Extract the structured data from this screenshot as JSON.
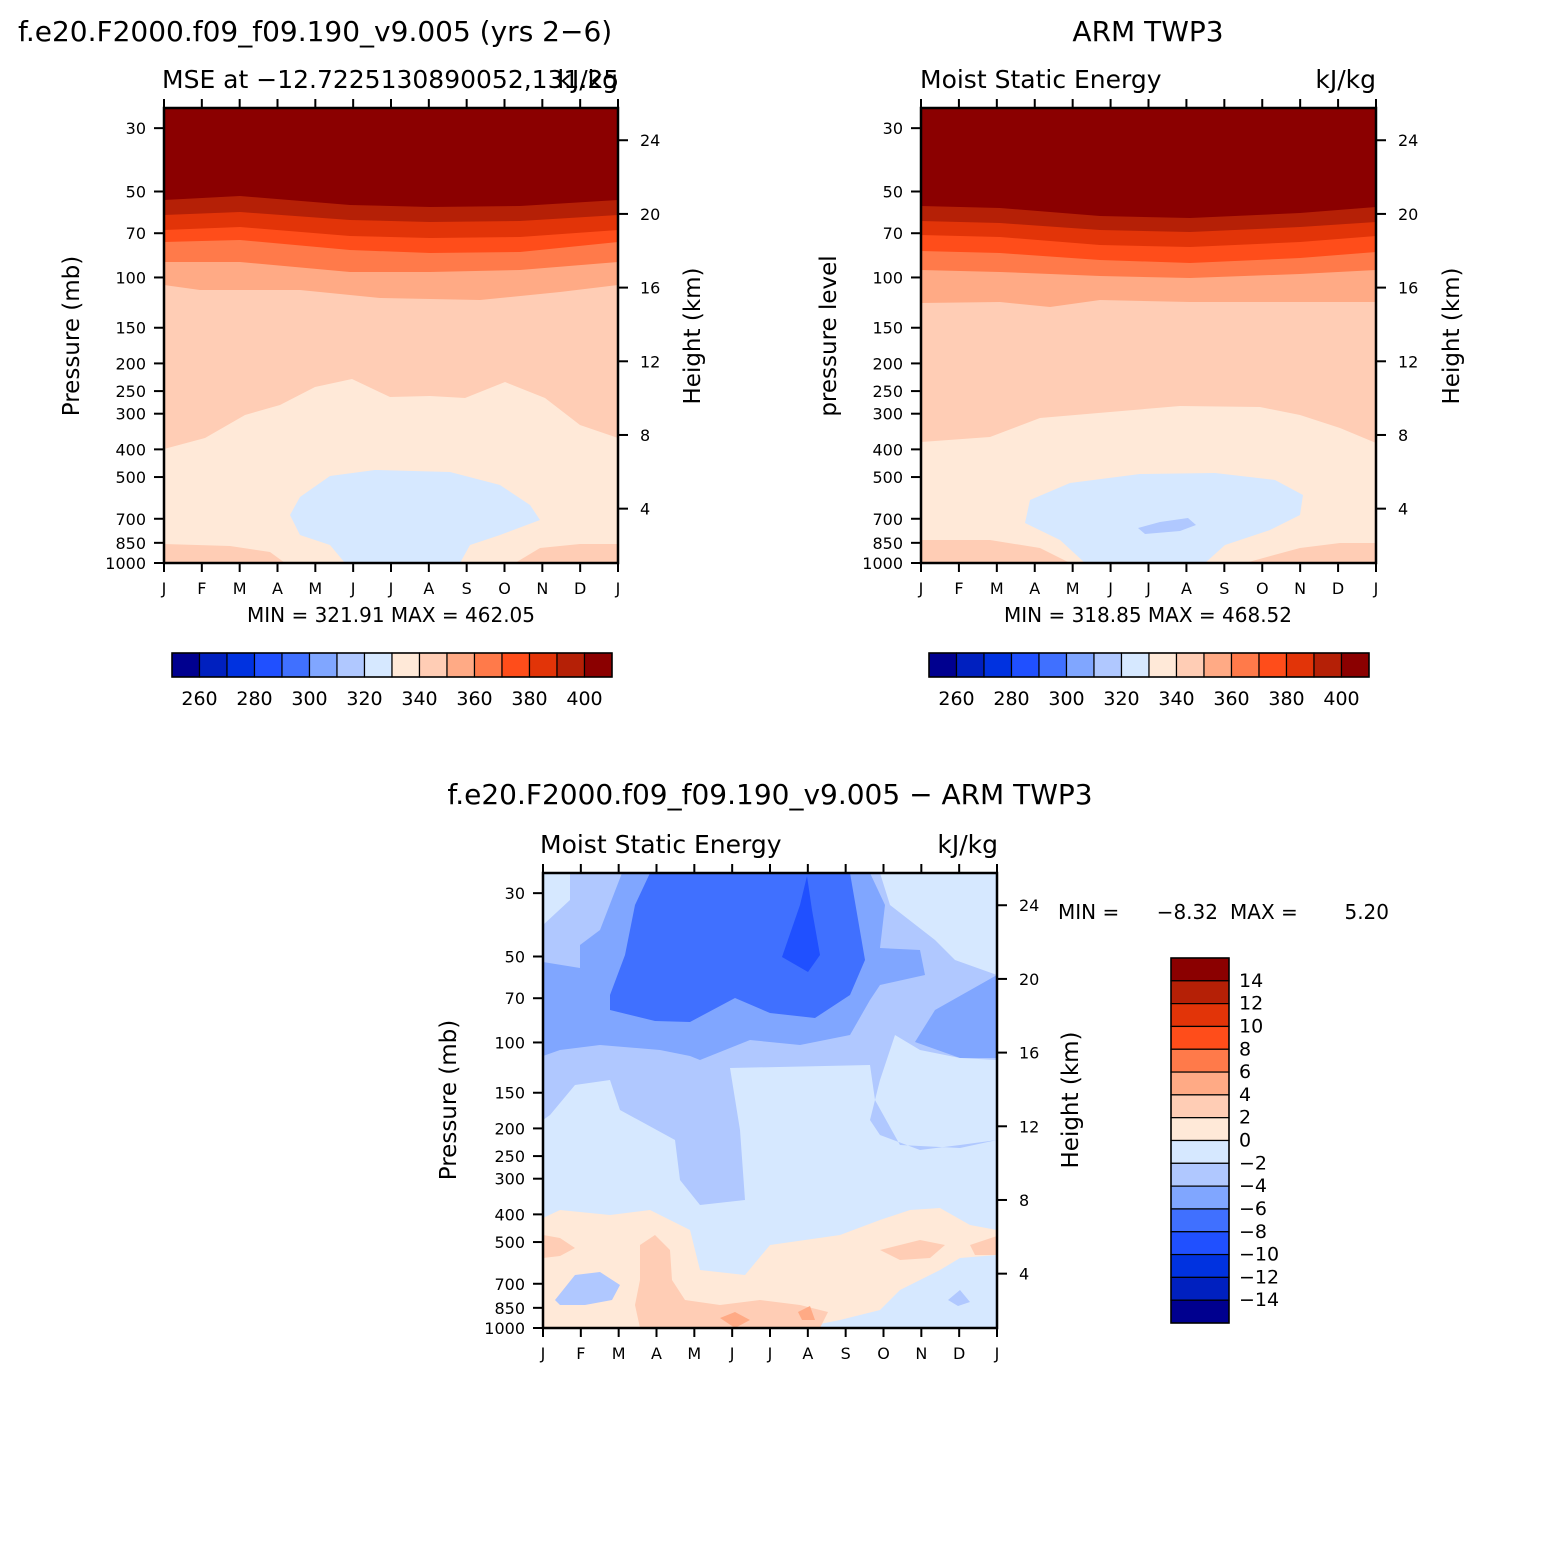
{
  "chart_data": [
    {
      "type": "contour",
      "panel": "model",
      "title": "f.e20.F2000.f09_f09.190_v9.005 (yrs 2−6)",
      "subtitle_left": "MSE at −12.7225130890052,131.25",
      "subtitle_right": "kJ/kg",
      "ylabel": "Pressure (mb)",
      "ylabel_right": "Height (km)",
      "x_labels": [
        "J",
        "F",
        "M",
        "A",
        "M",
        "J",
        "J",
        "A",
        "S",
        "O",
        "N",
        "D",
        "J"
      ],
      "pressure_ticks": [
        "30",
        "50",
        "70",
        "100",
        "150",
        "200",
        "250",
        "300",
        "400",
        "500",
        "700",
        "850",
        "1000"
      ],
      "height_ticks": [
        "24",
        "20",
        "16",
        "12",
        "8",
        "4"
      ],
      "min_max": "MIN = 321.91 MAX = 462.05",
      "min": 321.91,
      "max": 462.05,
      "colorbar": {
        "labels": [
          "260",
          "280",
          "300",
          "320",
          "340",
          "360",
          "380",
          "400"
        ],
        "levels_start": 250,
        "step": 10
      },
      "band_boundaries_mb": {
        "330": [
          380,
          360,
          300,
          260,
          235,
          225,
          255,
          255,
          250,
          232,
          255,
          310,
          380
        ],
        "320": [
          null,
          null,
          null,
          null,
          null,
          null,
          null,
          null,
          null,
          null,
          null,
          null,
          null
        ]
      }
    },
    {
      "type": "contour",
      "panel": "observed",
      "title": "ARM TWP3",
      "subtitle_left": "Moist Static Energy",
      "subtitle_right": "kJ/kg",
      "ylabel": "pressure level",
      "ylabel_right": "Height (km)",
      "x_labels": [
        "J",
        "F",
        "M",
        "A",
        "M",
        "J",
        "J",
        "A",
        "S",
        "O",
        "N",
        "D",
        "J"
      ],
      "pressure_ticks": [
        "30",
        "50",
        "70",
        "100",
        "150",
        "200",
        "250",
        "300",
        "400",
        "500",
        "700",
        "850",
        "1000"
      ],
      "height_ticks": [
        "24",
        "20",
        "16",
        "12",
        "8",
        "4"
      ],
      "min_max": "MIN = 318.85 MAX = 468.52",
      "min": 318.85,
      "max": 468.52,
      "colorbar": {
        "labels": [
          "260",
          "280",
          "300",
          "320",
          "340",
          "360",
          "380",
          "400"
        ],
        "levels_start": 250,
        "step": 10
      }
    },
    {
      "type": "contour",
      "panel": "difference",
      "title": "f.e20.F2000.f09_f09.190_v9.005 − ARM TWP3",
      "subtitle_left": "Moist Static Energy",
      "subtitle_right": "kJ/kg",
      "ylabel": "Pressure (mb)",
      "ylabel_right": "Height (km)",
      "x_labels": [
        "J",
        "F",
        "M",
        "A",
        "M",
        "J",
        "J",
        "A",
        "S",
        "O",
        "N",
        "D",
        "J"
      ],
      "pressure_ticks": [
        "30",
        "50",
        "70",
        "100",
        "150",
        "200",
        "250",
        "300",
        "400",
        "500",
        "700",
        "850",
        "1000"
      ],
      "height_ticks": [
        "24",
        "20",
        "16",
        "12",
        "8",
        "4"
      ],
      "min_max_label_min": "MIN =",
      "min_max_value_min": "−8.32",
      "min_max_label_max": "MAX =",
      "min_max_value_max": "5.20",
      "min": -8.32,
      "max": 5.2,
      "colorbar": {
        "labels": [
          "14",
          "12",
          "10",
          "8",
          "6",
          "4",
          "2",
          "0",
          "−2",
          "−4",
          "−6",
          "−8",
          "−10",
          "−12",
          "−14"
        ],
        "levels": [
          -16,
          -14,
          -12,
          -10,
          -8,
          -6,
          -4,
          -2,
          0,
          2,
          4,
          6,
          8,
          10,
          12,
          14,
          16
        ]
      }
    }
  ],
  "colors": {
    "div16": [
      "#00008f",
      "#0020bf",
      "#0032e0",
      "#2050ff",
      "#4070ff",
      "#80a6ff",
      "#b0c8ff",
      "#d6e8ff",
      "#ffe9d8",
      "#ffcdb5",
      "#ffaa85",
      "#ff7a4a",
      "#ff4d1a",
      "#e23408",
      "#b52006",
      "#8b0000"
    ]
  }
}
